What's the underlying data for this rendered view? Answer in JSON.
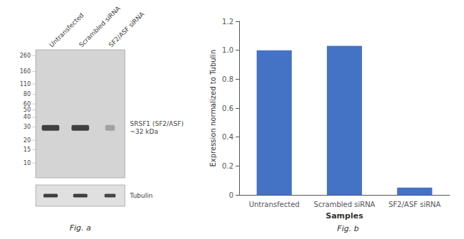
{
  "chart_data": [
    {
      "type": "blot",
      "title": "Fig. a",
      "categories": [
        "Untransfected",
        "Scrambled siRNA",
        "SF2/ASF siRNA"
      ],
      "annotations": [
        "260",
        "160",
        "110",
        "80",
        "60",
        "50",
        "40",
        "30",
        "20",
        "15",
        "10",
        "SRSF1 (SF2/ASF)\n~32 kDa",
        "Tubulin"
      ]
    },
    {
      "type": "bar",
      "title": "Fig. b",
      "categories": [
        "Untransfected",
        "Scrambled siRNA",
        "SF2/ASF siRNA"
      ],
      "values": [
        1.0,
        1.03,
        0.05
      ],
      "color": "#4472C4",
      "xlabel": "Samples",
      "ylabel": "Expression normalized to Tubulin",
      "ylim": [
        0,
        1.2
      ],
      "yticks": [
        0,
        0.2,
        0.4,
        0.6,
        0.8,
        {
          "value": 1.0,
          "label": "1.0"
        },
        1.2
      ],
      "grid": false
    }
  ]
}
